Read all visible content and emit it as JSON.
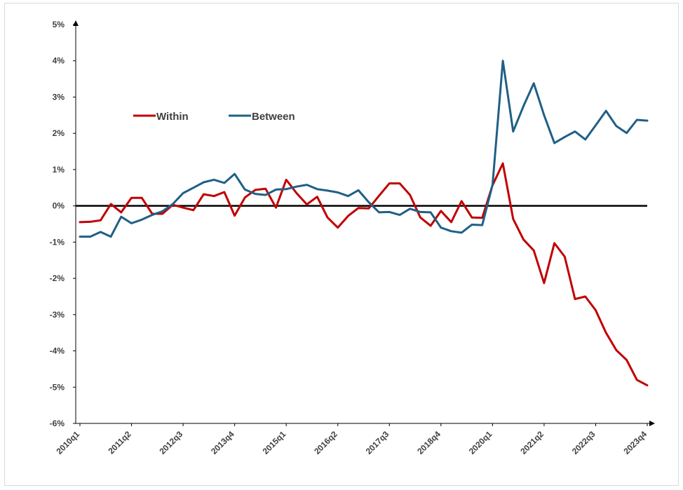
{
  "chart_data": {
    "type": "line",
    "title": "",
    "xlabel": "",
    "ylabel": "",
    "ylim": [
      -6,
      5
    ],
    "yticks": [
      5,
      4,
      3,
      2,
      1,
      0,
      -1,
      -2,
      -3,
      -4,
      -5,
      -6
    ],
    "ytick_labels": [
      "5%",
      "4%",
      "3%",
      "2%",
      "1%",
      "0%",
      "-1%",
      "-2%",
      "-3%",
      "-4%",
      "-5%",
      "-6%"
    ],
    "x": [
      "2010q1",
      "2010q2",
      "2010q3",
      "2010q4",
      "2011q1",
      "2011q2",
      "2011q3",
      "2011q4",
      "2012q1",
      "2012q2",
      "2012q3",
      "2012q4",
      "2013q1",
      "2013q2",
      "2013q3",
      "2013q4",
      "2014q1",
      "2014q2",
      "2014q3",
      "2014q4",
      "2015q1",
      "2015q2",
      "2015q3",
      "2015q4",
      "2016q1",
      "2016q2",
      "2016q3",
      "2016q4",
      "2017q1",
      "2017q2",
      "2017q3",
      "2017q4",
      "2018q1",
      "2018q2",
      "2018q3",
      "2018q4",
      "2019q1",
      "2019q2",
      "2019q3",
      "2019q4",
      "2020q1",
      "2020q2",
      "2020q3",
      "2020q4",
      "2021q1",
      "2021q2",
      "2021q3",
      "2021q4",
      "2022q1",
      "2022q2",
      "2022q3",
      "2022q4",
      "2023q1",
      "2023q2",
      "2023q3",
      "2023q4"
    ],
    "xtick_labels": [
      "2010q1",
      "2011q2",
      "2012q3",
      "2013q4",
      "2015q1",
      "2016q2",
      "2017q3",
      "2018q4",
      "2020q1",
      "2021q2",
      "2022q3",
      "2023q4"
    ],
    "reference_line": 0,
    "series": [
      {
        "name": "Within",
        "color": "#c00000",
        "values": [
          -0.45,
          -0.44,
          -0.4,
          0.05,
          -0.18,
          0.22,
          0.22,
          -0.22,
          -0.22,
          0.03,
          -0.05,
          -0.12,
          0.32,
          0.27,
          0.38,
          -0.27,
          0.23,
          0.44,
          0.47,
          -0.05,
          0.72,
          0.35,
          0.04,
          0.25,
          -0.32,
          -0.6,
          -0.28,
          -0.06,
          -0.07,
          0.28,
          0.62,
          0.62,
          0.3,
          -0.32,
          -0.55,
          -0.14,
          -0.45,
          0.13,
          -0.32,
          -0.33,
          0.57,
          1.17,
          -0.36,
          -0.93,
          -1.23,
          -2.13,
          -1.03,
          -1.4,
          -2.57,
          -2.5,
          -2.88,
          -3.5,
          -3.98,
          -4.25,
          -4.8,
          -4.95
        ]
      },
      {
        "name": "Between",
        "color": "#1f5f86",
        "values": [
          -0.85,
          -0.85,
          -0.72,
          -0.85,
          -0.3,
          -0.48,
          -0.38,
          -0.25,
          -0.15,
          0.05,
          0.35,
          0.5,
          0.65,
          0.72,
          0.63,
          0.88,
          0.45,
          0.33,
          0.3,
          0.45,
          0.46,
          0.53,
          0.58,
          0.46,
          0.42,
          0.37,
          0.27,
          0.43,
          0.1,
          -0.18,
          -0.17,
          -0.25,
          -0.08,
          -0.17,
          -0.18,
          -0.6,
          -0.7,
          -0.74,
          -0.52,
          -0.53,
          0.58,
          4.0,
          2.05,
          2.75,
          3.38,
          2.5,
          1.73,
          1.9,
          2.05,
          1.83,
          2.22,
          2.62,
          2.2,
          2.01,
          2.37,
          2.35
        ]
      }
    ],
    "legend": {
      "placement": "top-left",
      "layout": "horizontal"
    }
  }
}
